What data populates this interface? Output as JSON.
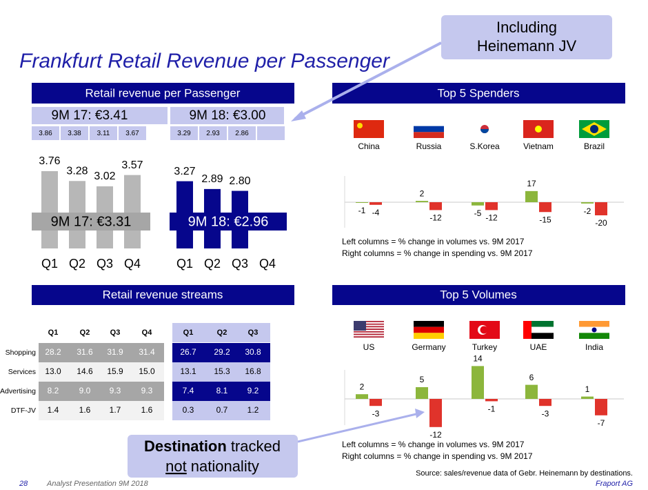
{
  "title": "Frankfurt Retail Revenue per Passenger",
  "callout_top": {
    "lines": [
      "Including",
      "Heinemann JV"
    ]
  },
  "callout_bottom": {
    "bold": "Destination",
    "rest": "tracked",
    "underlined": "not",
    "end": "nationality"
  },
  "streams": {
    "title": "Retail revenue streams",
    "row_labels": [
      "Shopping",
      "Services",
      "Advertising",
      "DTF-JV"
    ],
    "tables": [
      {
        "columns": [
          "Q1",
          "Q2",
          "Q3",
          "Q4"
        ],
        "rows": [
          [
            "28.2",
            "31.6",
            "31.9",
            "31.4"
          ],
          [
            "13.0",
            "14.6",
            "15.9",
            "15.0"
          ],
          [
            "8.2",
            "9.0",
            "9.3",
            "9.3"
          ],
          [
            "1.4",
            "1.6",
            "1.7",
            "1.6"
          ]
        ]
      },
      {
        "columns": [
          "Q1",
          "Q2",
          "Q3"
        ],
        "rows": [
          [
            "26.7",
            "29.2",
            "30.8"
          ],
          [
            "13.1",
            "15.3",
            "16.8"
          ],
          [
            "7.4",
            "8.1",
            "9.2"
          ],
          [
            "0.3",
            "0.7",
            "1.2"
          ]
        ]
      }
    ]
  },
  "footer": {
    "page": "28",
    "presentation": "Analyst Presentation 9M 2018",
    "source": "Source: sales/revenue data of Gebr. Heinemann by destinations.",
    "company": "Fraport AG"
  },
  "chart_data": [
    {
      "type": "bar",
      "title": "Retail revenue per Passenger",
      "categories": [
        "Q1",
        "Q2",
        "Q3",
        "Q4"
      ],
      "series": [
        {
          "color": "#b7b7b7",
          "values": [
            3.76,
            3.28,
            3.02,
            3.57
          ],
          "summary": "9M 17: €3.31",
          "header": "9M 17: €3.41",
          "header_values": [
            3.86,
            3.38,
            3.11,
            3.67
          ]
        },
        {
          "color": "#06068c",
          "values": [
            3.27,
            2.89,
            2.8,
            null
          ],
          "value_labels": [
            "3.27",
            "2.89",
            "2.80",
            null
          ],
          "summary": "9M 18: €2.96",
          "header": "9M 18:  €3.00",
          "header_values": [
            3.29,
            2.93,
            2.86,
            null
          ]
        }
      ]
    },
    {
      "type": "bar",
      "title": "Top 5 Spenders",
      "categories": [
        "China",
        "Russia",
        "S.Korea",
        "Vietnam",
        "Brazil"
      ],
      "series": [
        {
          "color": "#8cb63c",
          "values": [
            -1,
            2,
            -5,
            17,
            -2
          ]
        },
        {
          "color": "#e0332b",
          "values": [
            -4,
            -12,
            -12,
            -15,
            -20
          ]
        }
      ],
      "notes": [
        "Left columns = % change in volumes vs. 9M 2017",
        "Right columns = % change in spending vs. 9M 2017"
      ]
    },
    {
      "type": "bar",
      "title": "Top 5 Volumes",
      "categories": [
        "US",
        "Germany",
        "Turkey",
        "UAE",
        "India"
      ],
      "series": [
        {
          "color": "#8cb63c",
          "values": [
            2,
            5,
            14,
            6,
            1
          ]
        },
        {
          "color": "#e0332b",
          "values": [
            -3,
            -12,
            -1,
            -3,
            -7
          ]
        }
      ],
      "notes": [
        "Left columns = % change in volumes vs. 9M 2017",
        "Right columns = % change in spending vs. 9M 2017"
      ]
    }
  ]
}
